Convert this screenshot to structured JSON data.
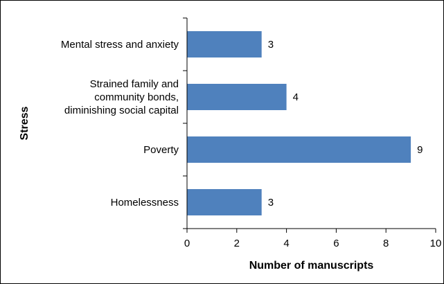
{
  "chart_data": {
    "type": "bar",
    "orientation": "horizontal",
    "title": "",
    "xlabel": "Number of manuscripts",
    "ylabel": "Stress",
    "xlim": [
      0,
      10
    ],
    "x_ticks": [
      "0",
      "2",
      "4",
      "6",
      "8",
      "10"
    ],
    "grid": false,
    "categories": [
      "Mental stress and anxiety",
      "Strained family and community bonds, diminishing social capital",
      "Poverty",
      "Homelessness"
    ],
    "category_label_lines": [
      [
        "Mental stress and anxiety"
      ],
      [
        "Strained family and",
        "community bonds,",
        "diminishing social capital"
      ],
      [
        "Poverty"
      ],
      [
        "Homelessness"
      ]
    ],
    "values": [
      3,
      4,
      9,
      3
    ],
    "data_labels": [
      "3",
      "4",
      "9",
      "3"
    ],
    "bar_color": "#4f81bd"
  }
}
